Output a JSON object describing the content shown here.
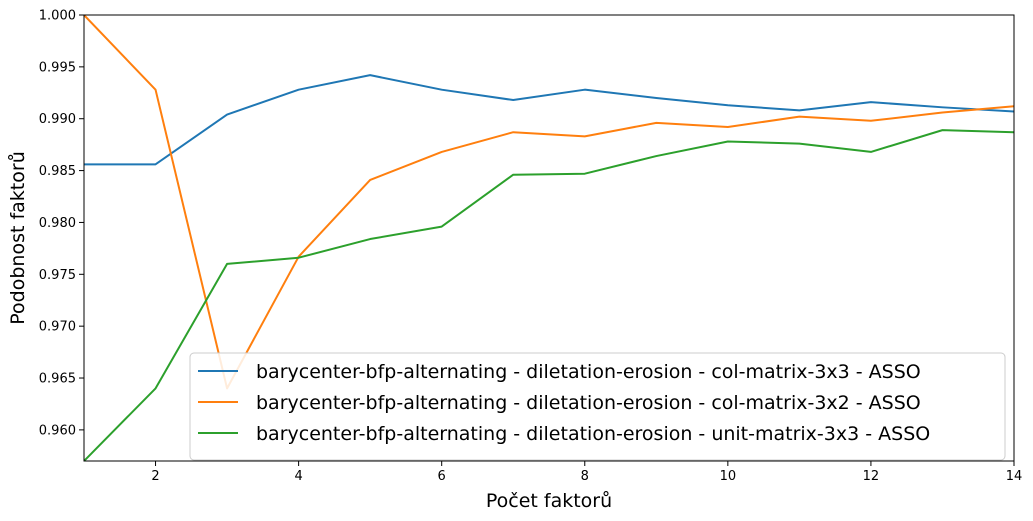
{
  "chart_data": {
    "type": "line",
    "xlabel": "Počet faktorů",
    "ylabel": "Podobnost faktorů",
    "xlim": [
      1,
      14
    ],
    "ylim": [
      0.957,
      1.0
    ],
    "xticks": [
      2,
      4,
      6,
      8,
      10,
      12,
      14
    ],
    "xtick_labels": [
      "2",
      "4",
      "6",
      "8",
      "10",
      "12",
      "14"
    ],
    "yticks": [
      0.96,
      0.965,
      0.97,
      0.975,
      0.98,
      0.985,
      0.99,
      0.995,
      1.0
    ],
    "ytick_labels": [
      "0.960",
      "0.965",
      "0.970",
      "0.975",
      "0.980",
      "0.985",
      "0.990",
      "0.995",
      "1.000"
    ],
    "grid": false,
    "legend_position": "lower-right",
    "x": [
      1,
      2,
      3,
      4,
      5,
      6,
      7,
      8,
      9,
      10,
      11,
      12,
      13,
      14
    ],
    "series": [
      {
        "name": "barycenter-bfp-alternating - diletation-erosion - col-matrix-3x3 - ASSO",
        "color": "#1f77b4",
        "values": [
          0.9856,
          0.9856,
          0.9904,
          0.9928,
          0.9942,
          0.9928,
          0.9918,
          0.9928,
          0.992,
          0.9913,
          0.9908,
          0.9916,
          0.9911,
          0.9907
        ]
      },
      {
        "name": "barycenter-bfp-alternating - diletation-erosion - col-matrix-3x2 - ASSO",
        "color": "#ff7f0e",
        "values": [
          1.0,
          0.9928,
          0.964,
          0.9767,
          0.9841,
          0.9868,
          0.9887,
          0.9883,
          0.9896,
          0.9892,
          0.9902,
          0.9898,
          0.9906,
          0.9912
        ]
      },
      {
        "name": "barycenter-bfp-alternating - diletation-erosion - unit-matrix-3x3 - ASSO",
        "color": "#2ca02c",
        "values": [
          0.957,
          0.964,
          0.976,
          0.9766,
          0.9784,
          0.9796,
          0.9846,
          0.9847,
          0.9864,
          0.9878,
          0.9876,
          0.9868,
          0.9889,
          0.9887
        ]
      }
    ]
  }
}
